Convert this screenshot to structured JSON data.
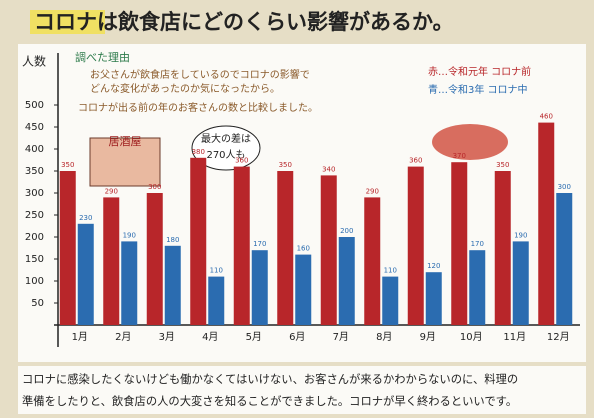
{
  "chart_data": {
    "type": "bar",
    "title": "コロナは飲食店にどのくらい影響があるか。",
    "y_label": "人数",
    "categories": [
      "1月",
      "2月",
      "3月",
      "4月",
      "5月",
      "6月",
      "7月",
      "8月",
      "9月",
      "10月",
      "11月",
      "12月"
    ],
    "series": [
      {
        "name": "赤…令和元年 コロナ前",
        "color": "#b8262a",
        "values": [
          350,
          290,
          300,
          380,
          360,
          350,
          340,
          290,
          360,
          370,
          350,
          460
        ]
      },
      {
        "name": "青…令和3年 コロナ中",
        "color": "#2b6cb0",
        "values": [
          230,
          190,
          180,
          110,
          170,
          160,
          200,
          110,
          120,
          170,
          190,
          300
        ]
      }
    ],
    "ylim": [
      0,
      600
    ],
    "yticks": [
      50,
      100,
      150,
      200,
      250,
      300,
      350,
      400,
      450,
      500
    ],
    "annotations": [
      "調べた理由",
      "お父さんが飲食店をしているのでコロナの影響で",
      "どんな変化があったのか気になったから。",
      "コロナが出る前の年のお客さんの数と比較しました。",
      "居酒屋",
      "最大の差は",
      "270人も"
    ],
    "caption": [
      "コロナに感染したくないけども働かなくてはいけない、お客さんが来るかわからないのに、料理の",
      "準備をしたりと、飲食店の人の大変さを知ることができました。コロナが早く終わるといいです。"
    ]
  }
}
